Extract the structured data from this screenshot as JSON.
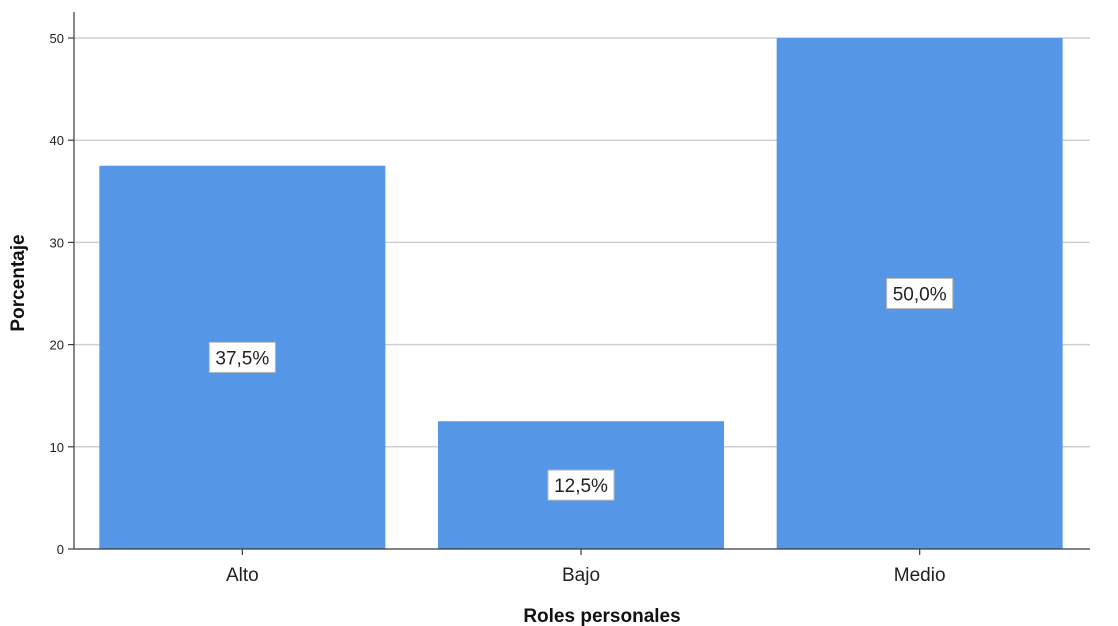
{
  "chart_data": {
    "type": "bar",
    "categories": [
      "Alto",
      "Bajo",
      "Medio"
    ],
    "values": [
      37.5,
      12.5,
      50.0
    ],
    "data_labels": [
      "37,5%",
      "12,5%",
      "50,0%"
    ],
    "xlabel": "Roles personales",
    "ylabel": "Porcentaje",
    "ylim": [
      0,
      50
    ],
    "yticks": [
      0,
      10,
      20,
      30,
      40,
      50
    ],
    "grid": true,
    "bar_color": "#5596e6"
  }
}
